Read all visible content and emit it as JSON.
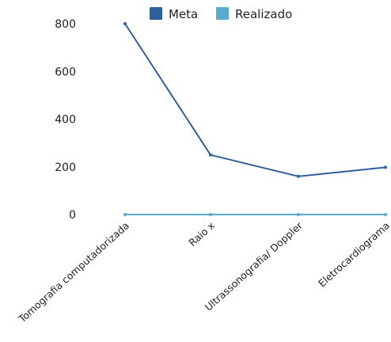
{
  "chart_data": {
    "type": "line",
    "categories": [
      "Tomografia computadorizada",
      "Raio x",
      "Ultrassonografia/ Doppler",
      "Eletrocardiograma"
    ],
    "series": [
      {
        "name": "Meta",
        "values": [
          800,
          250,
          160,
          198
        ],
        "color": "#2f5f9a"
      },
      {
        "name": "Realizado",
        "values": [
          0,
          0,
          0,
          0
        ],
        "color": "#5aaad0"
      }
    ],
    "y_ticks": [
      0,
      200,
      400,
      600,
      800
    ],
    "ylim": [
      0,
      800
    ],
    "legend_position": "top",
    "grid": false
  }
}
